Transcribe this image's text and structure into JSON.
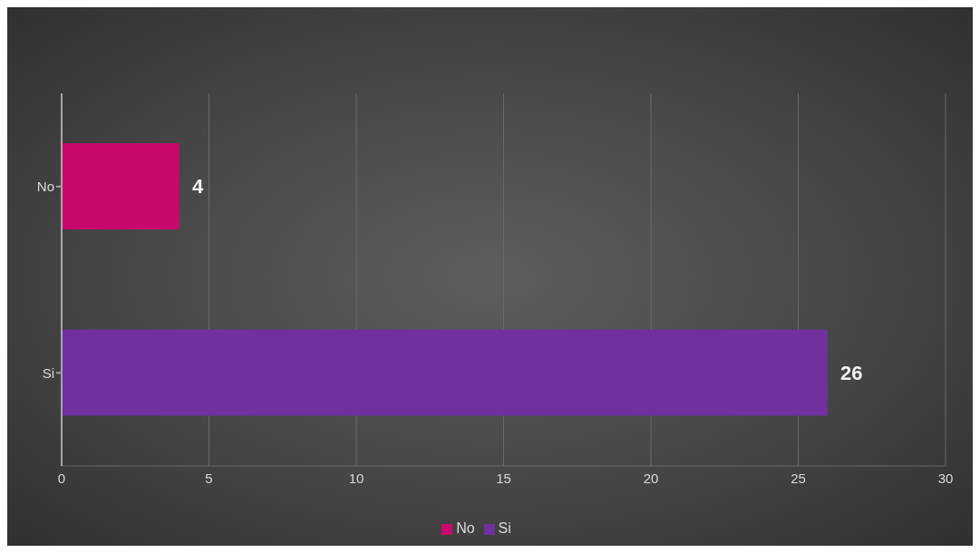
{
  "chart_data": {
    "type": "bar",
    "orientation": "horizontal",
    "stacked": true,
    "categories": [
      "No",
      "Si"
    ],
    "series": [
      {
        "name": "Si",
        "color": "#7030a0",
        "values": [
          null,
          26
        ]
      },
      {
        "name": "No",
        "color": "#c8086c",
        "values": [
          4,
          null
        ]
      }
    ],
    "xlim": [
      0,
      30
    ],
    "xticks": [
      0,
      5,
      10,
      15,
      20,
      25,
      30
    ],
    "grid": "x",
    "legend": "bottom",
    "data_labels": true
  }
}
